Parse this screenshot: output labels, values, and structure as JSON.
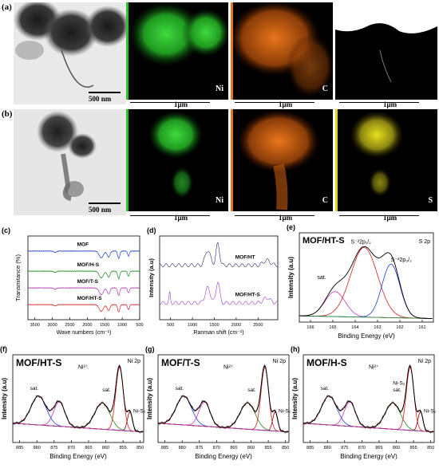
{
  "panels": {
    "a": {
      "label": "(a)",
      "scale_tem": "500 nm",
      "scale_map": "1μm",
      "elements": [
        "Ni",
        "C",
        ""
      ]
    },
    "b": {
      "label": "(b)",
      "scale_tem": "500 nm",
      "scale_map": "1μm",
      "elements": [
        "Ni",
        "C",
        "S"
      ]
    }
  },
  "colors": {
    "ni": "#2bc52b",
    "c": "#e8761c",
    "s": "#d9d61a",
    "mof": "#1f3fd6",
    "mofhs": "#1a8f1a",
    "mofts": "#b23ab2",
    "mofhts": "#d62020"
  },
  "chart_data": [
    {
      "panel": "(c)",
      "type": "line",
      "xlabel": "Wave numbers (cm⁻¹)",
      "ylabel": "Transmitance (%)",
      "xticks": [
        "3500",
        "3000",
        "2500",
        "2000",
        "1500",
        "1000",
        "500"
      ],
      "xlim": [
        3700,
        500
      ],
      "series": [
        {
          "name": "MOF",
          "color": "#1f3fd6"
        },
        {
          "name": "MOF/H-S",
          "color": "#1a8f1a"
        },
        {
          "name": "MOF/T-S",
          "color": "#b23ab2"
        },
        {
          "name": "MOF/HT-S",
          "color": "#d62020"
        }
      ]
    },
    {
      "panel": "(d)",
      "type": "line",
      "xlabel": "Ranman shift (cm⁻¹)",
      "ylabel": "Intensity (a.u)",
      "xticks": [
        "500",
        "1000",
        "1500",
        "2000",
        "2500"
      ],
      "xlim": [
        250,
        2950
      ],
      "series": [
        {
          "name": "MOF/HT",
          "color": "#2a2a7a"
        },
        {
          "name": "MOF/HT-S",
          "color": "#9b3cc8"
        }
      ]
    },
    {
      "panel": "(e)",
      "type": "line",
      "title": "MOF/HT-S",
      "corner": "S 2p",
      "xlabel": "Binding Energy (eV)",
      "ylabel": "Intensity (a.u)",
      "xticks": [
        "166",
        "165",
        "164",
        "163",
        "162",
        "161"
      ],
      "xlim": [
        166.5,
        160.5
      ],
      "peaks": [
        {
          "name": "sat.",
          "center": 164.9
        },
        {
          "name": "S⁻²2p₁/₂",
          "center": 163.6
        },
        {
          "name": "S⁻²2p₃/₂",
          "center": 162.4
        }
      ]
    },
    {
      "panel": "(f)",
      "type": "line",
      "title": "MOF/HT-S",
      "corner": "Ni 2p",
      "xlabel": "Binding Energy (eV)",
      "ylabel": "Intensity (a.u)",
      "xticks": [
        "885",
        "880",
        "875",
        "870",
        "865",
        "860",
        "855",
        "850"
      ],
      "xlim": [
        887,
        849
      ],
      "annotations": [
        "sat.",
        "Ni²⁺",
        "sat.",
        "Ni-S₂"
      ]
    },
    {
      "panel": "(g)",
      "type": "line",
      "title": "MOF/T-S",
      "corner": "Ni 2p",
      "xlabel": "Binding Energy (eV)",
      "ylabel": "Intensity (a.u)",
      "xticks": [
        "885",
        "880",
        "875",
        "870",
        "865",
        "860",
        "855",
        "850"
      ],
      "xlim": [
        887,
        849
      ],
      "annotations": [
        "sat.",
        "Ni²⁺",
        "sat.",
        "Ni-S₂"
      ]
    },
    {
      "panel": "(h)",
      "type": "line",
      "title": "MOF/H-S",
      "corner": "Ni 2p",
      "xlabel": "Binding Energy (eV)",
      "ylabel": "Intensity (a.u)",
      "xticks": [
        "885",
        "880",
        "875",
        "870",
        "865",
        "860",
        "855",
        "850"
      ],
      "xlim": [
        887,
        849
      ],
      "annotations": [
        "sat.",
        "Ni²⁺",
        "Ni-S₂\nsat.",
        "Ni-S₂"
      ]
    }
  ]
}
